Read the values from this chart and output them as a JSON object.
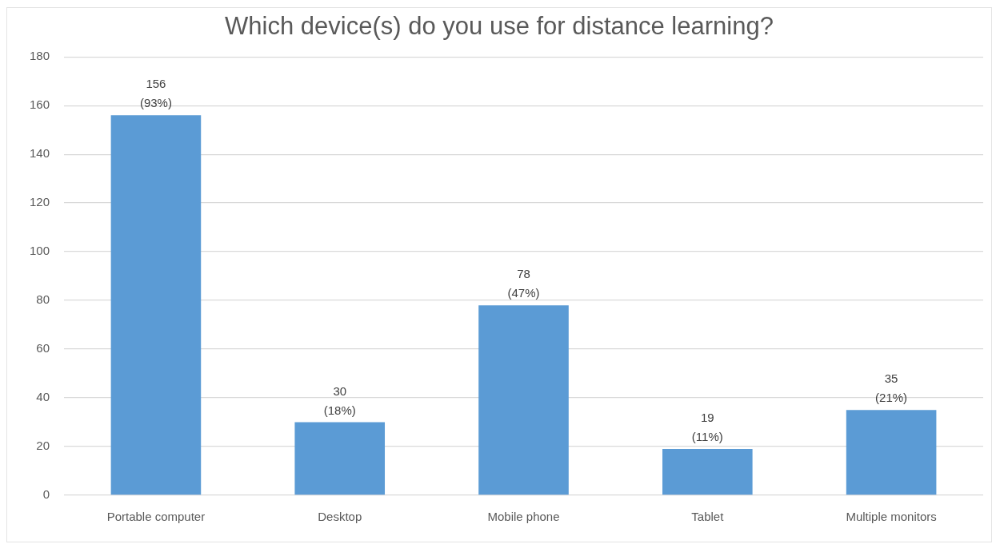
{
  "chart_data": {
    "type": "bar",
    "title": "Which device(s) do you use for distance learning?",
    "categories": [
      "Portable computer",
      "Desktop",
      "Mobile phone",
      "Tablet",
      "Multiple monitors"
    ],
    "values": [
      156,
      30,
      78,
      19,
      35
    ],
    "color": "#5b9bd5",
    "value_labels": [
      "156\n(93%)",
      "30\n(18%)",
      "78\n(47%)",
      "19\n(11%)",
      "35\n(21%)"
    ],
    "ylim": [
      0,
      180
    ],
    "yticks": [
      0,
      20,
      40,
      60,
      80,
      100,
      120,
      140,
      160,
      180
    ],
    "grid": "y"
  }
}
